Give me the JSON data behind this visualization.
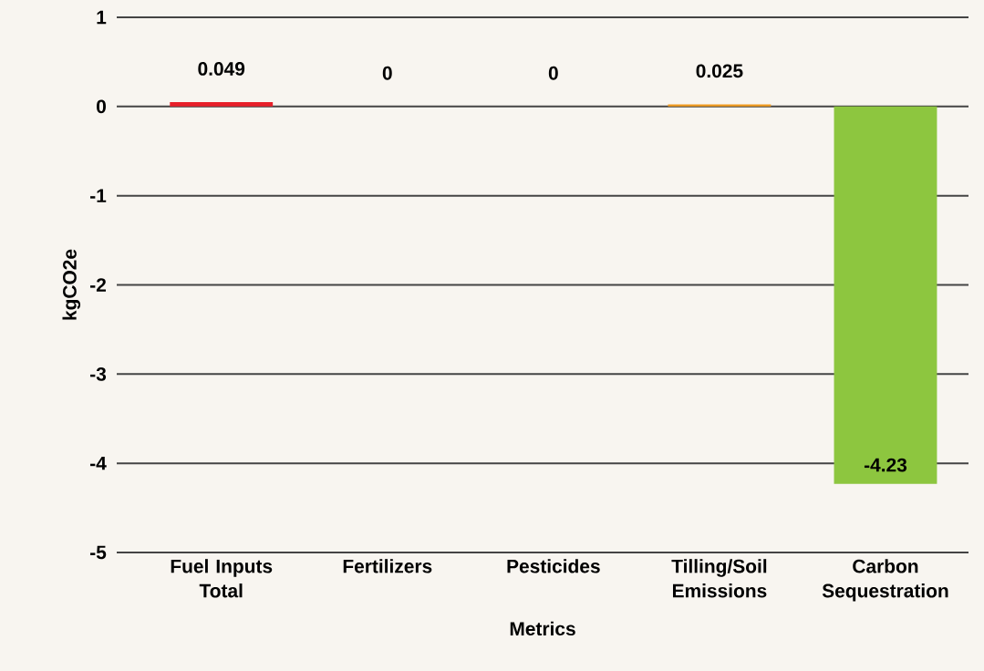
{
  "chart_data": {
    "type": "bar",
    "xlabel": "Metrics",
    "ylabel": "kgCO2e",
    "categories": [
      "Fuel Inputs Total",
      "Fertilizers",
      "Pesticides",
      "Tilling/Soil Emissions",
      "Carbon Sequestration"
    ],
    "values": [
      0.049,
      0,
      0,
      0.025,
      -4.23
    ],
    "colors": [
      "#e8202a",
      "#e8202a",
      "#e8202a",
      "#f39c1f",
      "#8dc63f"
    ],
    "ylim": [
      -5,
      1
    ],
    "yticks": [
      -5,
      -4,
      -3,
      -2,
      -1,
      0,
      1
    ],
    "grid": "y",
    "data_labels": true
  }
}
